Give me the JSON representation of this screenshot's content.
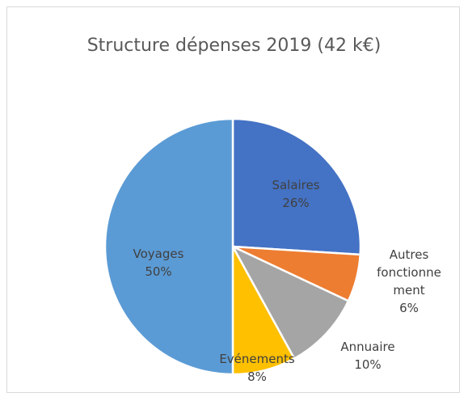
{
  "chart_data": {
    "type": "pie",
    "title": "Structure dépenses 2019 (42 k€)",
    "categories": [
      "Salaires",
      "Autres fonctionnement",
      "Annuaire",
      "Evénements",
      "Voyages"
    ],
    "values": [
      26,
      6,
      10,
      8,
      50
    ],
    "value_labels": [
      "26%",
      "6%",
      "10%",
      "8%",
      "50%"
    ],
    "colors": [
      "#4472c4",
      "#ed7d31",
      "#a5a5a5",
      "#ffc000",
      "#5b9bd5"
    ]
  }
}
